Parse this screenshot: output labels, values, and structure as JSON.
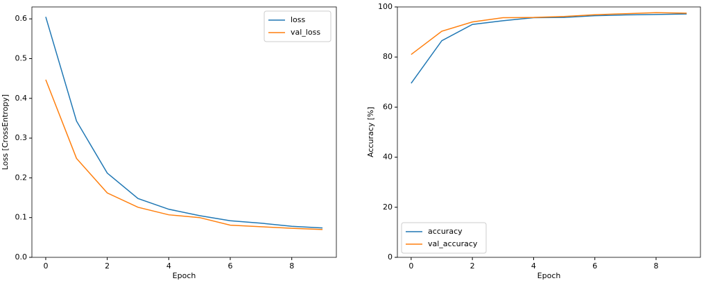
{
  "chart_data": [
    {
      "type": "line",
      "xlabel": "Epoch",
      "ylabel": "Loss [CrossEntropy]",
      "x": [
        0,
        1,
        2,
        3,
        4,
        5,
        6,
        7,
        8,
        9
      ],
      "series": [
        {
          "name": "loss",
          "color": "#1f77b4",
          "values": [
            0.605,
            0.343,
            0.212,
            0.148,
            0.121,
            0.105,
            0.092,
            0.086,
            0.078,
            0.074
          ]
        },
        {
          "name": "val_loss",
          "color": "#ff7f0e",
          "values": [
            0.447,
            0.249,
            0.162,
            0.126,
            0.107,
            0.1,
            0.081,
            0.077,
            0.073,
            0.07
          ]
        }
      ],
      "xlim": [
        -0.45,
        9.45
      ],
      "xticks": [
        0,
        2,
        4,
        6,
        8
      ],
      "ylim": [
        0,
        0.63
      ],
      "yticks": [
        {
          "value": 0,
          "label": "0.0"
        },
        0.1,
        0.2,
        0.3,
        0.4,
        0.5,
        0.6
      ],
      "legend": "upper right"
    },
    {
      "type": "line",
      "xlabel": "Epoch",
      "ylabel": "Accuracy [%]",
      "x": [
        0,
        1,
        2,
        3,
        4,
        5,
        6,
        7,
        8,
        9
      ],
      "series": [
        {
          "name": "accuracy",
          "color": "#1f77b4",
          "values": [
            69.5,
            86.5,
            93,
            94.5,
            95.7,
            95.8,
            96.5,
            96.8,
            97,
            97.2
          ]
        },
        {
          "name": "val_accuracy",
          "color": "#ff7f0e",
          "values": [
            81,
            90.3,
            94,
            95.7,
            95.8,
            96.2,
            96.9,
            97.3,
            97.7,
            97.5
          ]
        }
      ],
      "xlim": [
        -0.45,
        9.45
      ],
      "xticks": [
        0,
        2,
        4,
        6,
        8
      ],
      "ylim": [
        0,
        100
      ],
      "yticks": [
        0,
        20,
        40,
        60,
        80,
        100
      ],
      "legend": "lower left"
    }
  ]
}
